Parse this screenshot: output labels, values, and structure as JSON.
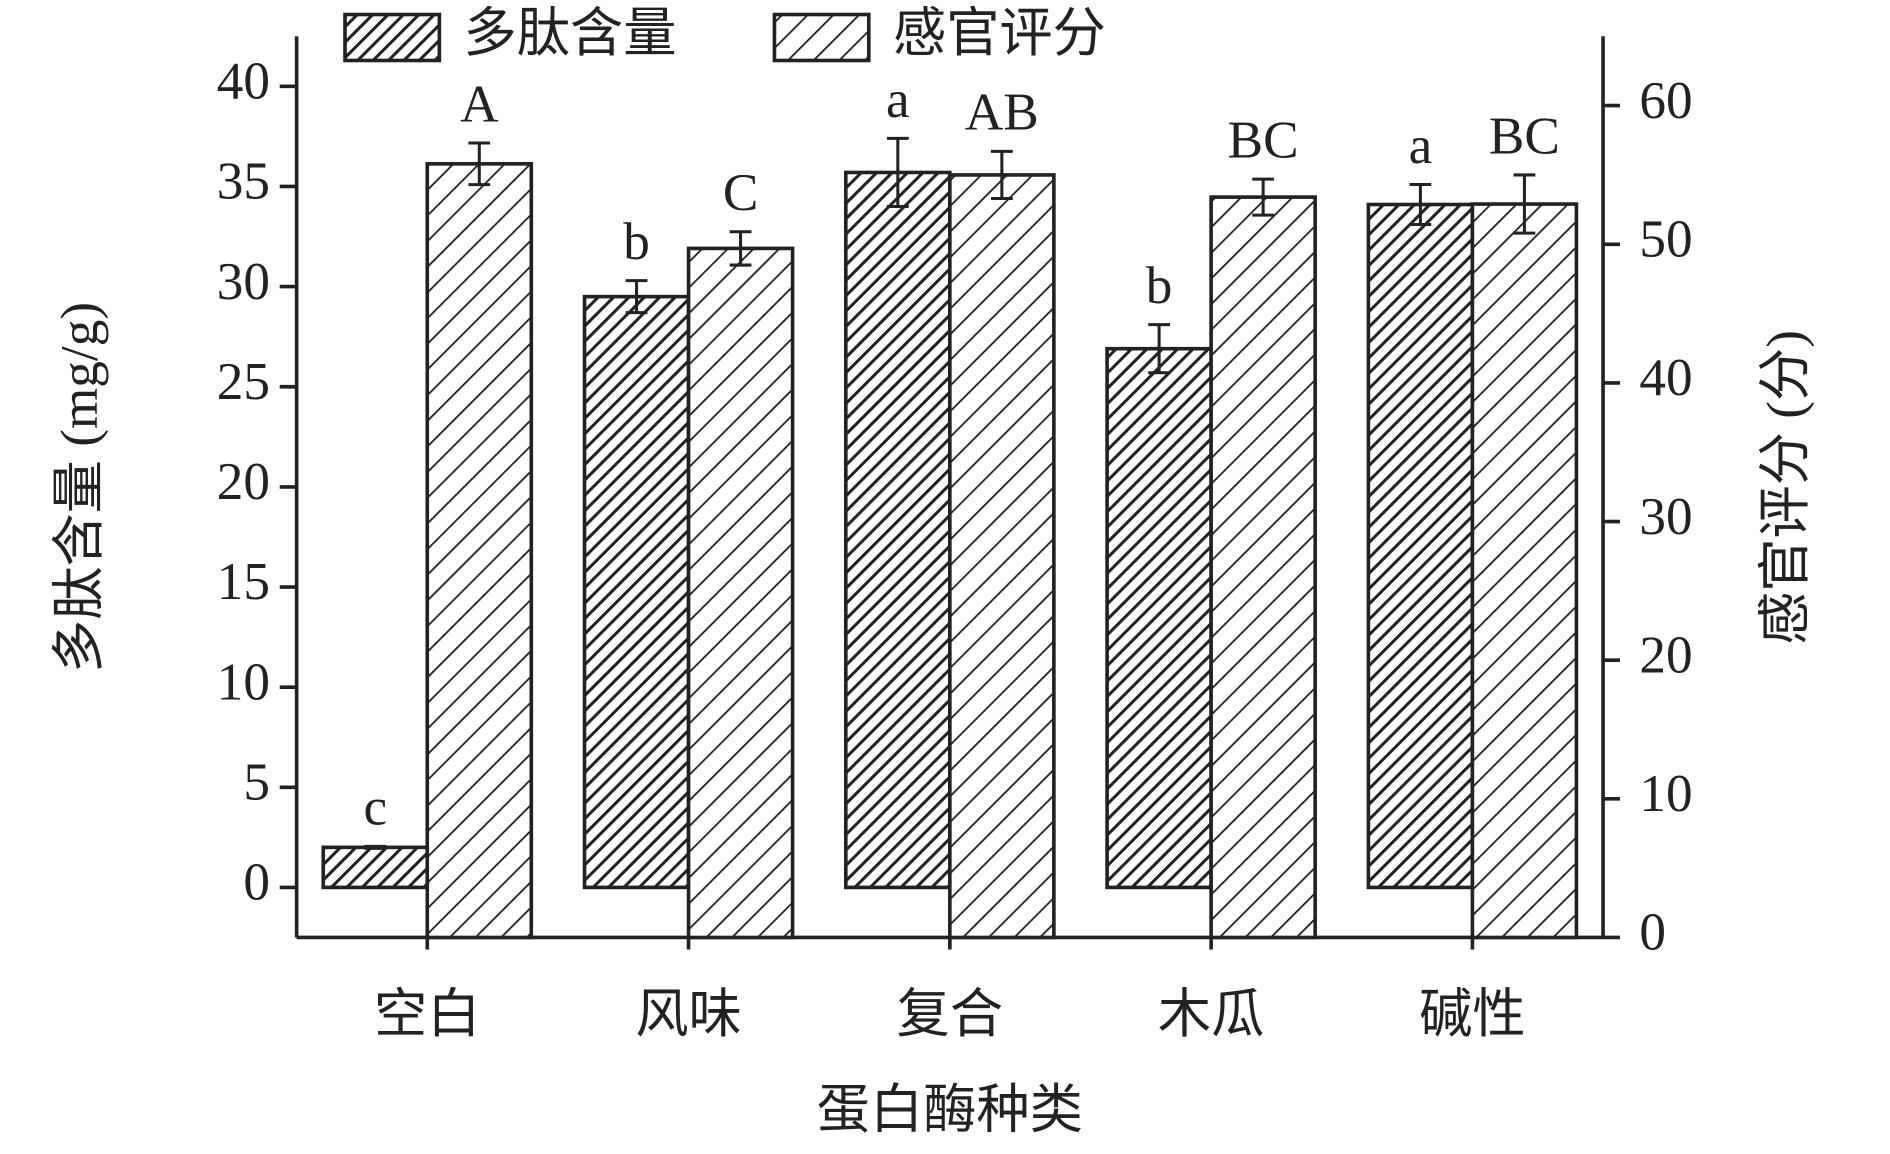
{
  "chart_data": {
    "type": "bar",
    "categories": [
      "空白",
      "风味",
      "复合",
      "木瓜",
      "碱性"
    ],
    "xlabel": "蛋白酶种类",
    "ylabel": "多肽含量 (mg/g)",
    "y2label": "感官评分 (分)",
    "ylim": [
      -2.5,
      42.5
    ],
    "yticks": [
      0,
      5,
      10,
      15,
      20,
      25,
      30,
      35,
      40
    ],
    "y2lim": [
      0,
      65
    ],
    "y2ticks": [
      0,
      10,
      20,
      30,
      40,
      50,
      60
    ],
    "legend": "top",
    "series": [
      {
        "name": "多肽含量",
        "color": "#222222",
        "hatch": "dense",
        "axis": "y",
        "values": [
          2.0,
          29.5,
          35.7,
          26.9,
          34.1
        ],
        "errors": [
          0.05,
          0.8,
          1.7,
          1.2,
          1.0
        ],
        "letters": [
          "c",
          "b",
          "a",
          "b",
          "a"
        ]
      },
      {
        "name": "感官评分",
        "color": "#222222",
        "hatch": "sparse",
        "axis": "y2",
        "values": [
          55.8,
          49.7,
          55.0,
          53.4,
          52.9
        ],
        "errors": [
          1.5,
          1.2,
          1.7,
          1.3,
          2.1
        ],
        "letters": [
          "A",
          "C",
          "AB",
          "BC",
          "BC"
        ]
      }
    ]
  }
}
